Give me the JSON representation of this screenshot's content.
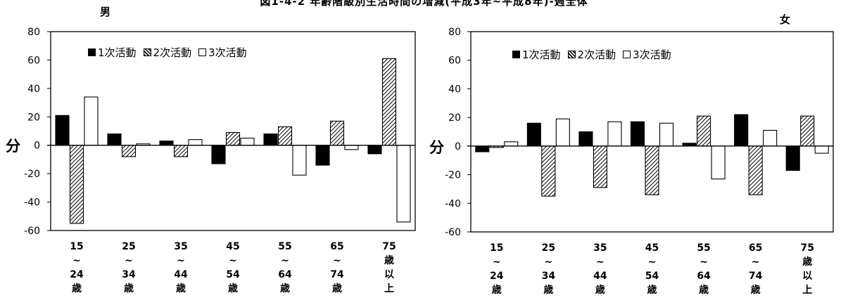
{
  "chart_data": [
    {
      "type": "bar",
      "title": "男",
      "ylabel": "分",
      "ylim": [
        -60,
        80
      ],
      "yticks": [
        80,
        60,
        40,
        20,
        0,
        -20,
        -40,
        -60
      ],
      "categories": [
        [
          "15",
          "~",
          "24",
          "歳"
        ],
        [
          "25",
          "~",
          "34",
          "歳"
        ],
        [
          "35",
          "~",
          "44",
          "歳"
        ],
        [
          "45",
          "~",
          "54",
          "歳"
        ],
        [
          "55",
          "~",
          "64",
          "歳"
        ],
        [
          "65",
          "~",
          "74",
          "歳"
        ],
        [
          "75",
          "歳",
          "以",
          "上"
        ]
      ],
      "series": [
        {
          "name": "1次活動",
          "values": [
            21,
            8,
            3,
            -13,
            8,
            -14,
            -6
          ]
        },
        {
          "name": "2次活動",
          "values": [
            -55,
            -8,
            -8,
            9,
            13,
            17,
            61
          ]
        },
        {
          "name": "3次活動",
          "values": [
            34,
            1,
            4,
            5,
            -21,
            -3,
            -54
          ]
        }
      ],
      "legend": [
        "1次活動",
        "2次活動",
        "3次活動"
      ],
      "legend_position": "top-left",
      "grid": false
    },
    {
      "type": "bar",
      "title": "女",
      "ylabel": "分",
      "ylim": [
        -60,
        80
      ],
      "yticks": [
        80,
        60,
        40,
        20,
        0,
        -20,
        -40,
        -60
      ],
      "categories": [
        [
          "15",
          "~",
          "24",
          "歳"
        ],
        [
          "25",
          "~",
          "34",
          "歳"
        ],
        [
          "35",
          "~",
          "44",
          "歳"
        ],
        [
          "45",
          "~",
          "54",
          "歳"
        ],
        [
          "55",
          "~",
          "64",
          "歳"
        ],
        [
          "65",
          "~",
          "74",
          "歳"
        ],
        [
          "75",
          "歳",
          "以",
          "上"
        ]
      ],
      "series": [
        {
          "name": "1次活動",
          "values": [
            -4,
            16,
            10,
            17,
            2,
            22,
            -17
          ]
        },
        {
          "name": "2次活動",
          "values": [
            -1,
            -35,
            -29,
            -34,
            21,
            -34,
            21
          ]
        },
        {
          "name": "3次活動",
          "values": [
            3,
            19,
            17,
            16,
            -23,
            11,
            -5
          ]
        }
      ],
      "legend": [
        "1次活動",
        "2次活動",
        "3次活動"
      ],
      "legend_position": "top-left",
      "grid": false
    }
  ],
  "figure_title": "図1-4-2 年齢階級別生活時間の増減(平成3年~平成8年)-週全体",
  "colors": {
    "primary": "#000000",
    "tertiary": "#ffffff",
    "axis": "#000000"
  }
}
